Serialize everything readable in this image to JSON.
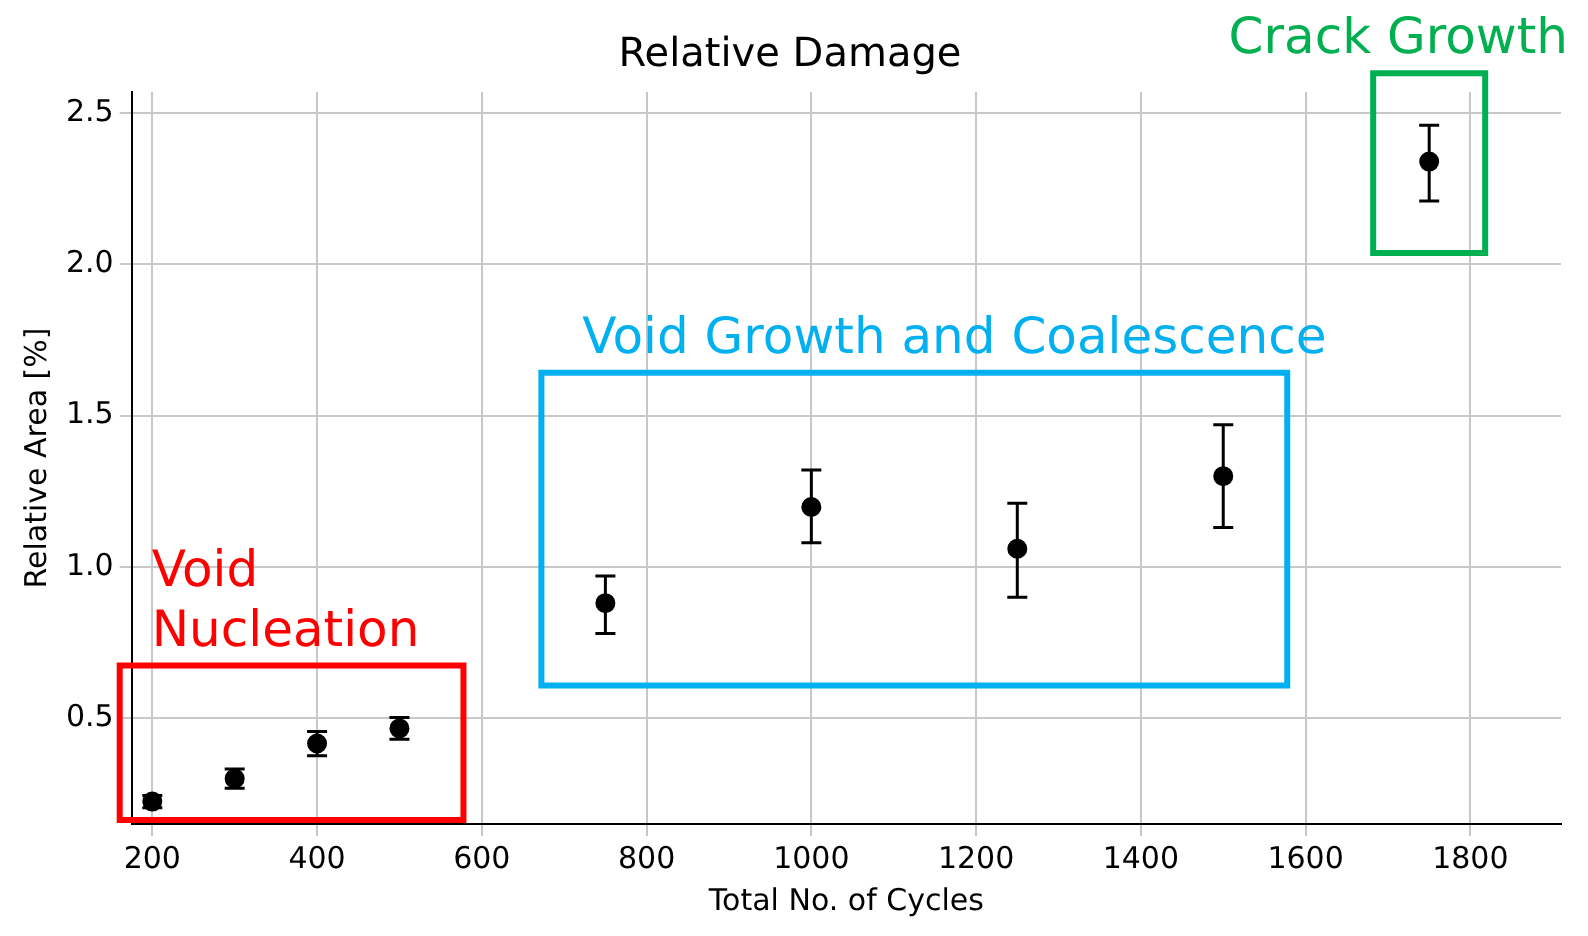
{
  "chart_data": {
    "type": "scatter",
    "title": "Relative Damage",
    "xlabel": "Total No. of Cycles",
    "ylabel": "Relative Area [%]",
    "x": [
      200,
      300,
      400,
      500,
      750,
      1000,
      1250,
      1500,
      1750
    ],
    "series": [
      {
        "color": "#000000",
        "values": [
          0.224,
          0.3,
          0.416,
          0.466,
          0.88,
          1.198,
          1.06,
          1.3,
          2.34
        ],
        "errors": [
          0.02,
          0.032,
          0.04,
          0.036,
          [
            0.78,
            0.97
          ],
          [
            1.08,
            1.32
          ],
          [
            0.9,
            1.21
          ],
          [
            1.13,
            1.47
          ],
          [
            2.21,
            2.46
          ]
        ]
      }
    ],
    "xlim": [
      175,
      1910
    ],
    "xticks": [
      200,
      400,
      600,
      800,
      1000,
      1200,
      1400,
      1600,
      1800
    ],
    "ylim": [
      0.15,
      2.57
    ],
    "yticks": [
      0.5,
      {
        "value": 1,
        "label": "1.0"
      },
      1.5,
      {
        "value": 2,
        "label": "2.0"
      },
      2.5
    ],
    "grid": true,
    "marker": "circle",
    "legend": false,
    "annotations": [
      "Void Nucleation",
      "Void Growth and Coalescence",
      "Crack Growth"
    ]
  }
}
